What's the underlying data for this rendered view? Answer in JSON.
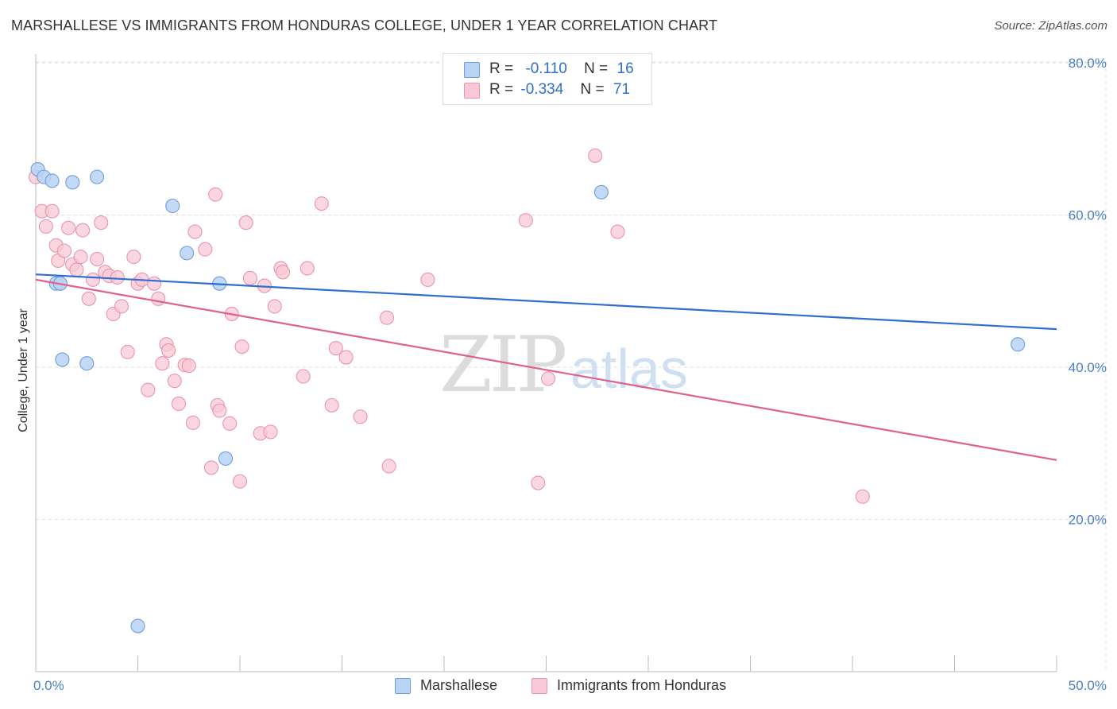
{
  "title": "MARSHALLESE VS IMMIGRANTS FROM HONDURAS COLLEGE, UNDER 1 YEAR CORRELATION CHART",
  "source": "Source: ZipAtlas.com",
  "watermark": {
    "zip": "ZIP",
    "atlas": "atlas"
  },
  "colors": {
    "blue_fill": "#b9d3f4",
    "blue_stroke": "#6f9ed9",
    "blue_line": "#2f6fd0",
    "pink_fill": "#f8c8d6",
    "pink_stroke": "#e994b0",
    "pink_line": "#e0608e",
    "grid": "#dddddd",
    "tick_text": "#4a7fc9"
  },
  "legend": {
    "rows": [
      {
        "r_label": "R =",
        "r_value": "-0.110",
        "n_label": "N =",
        "n_value": "16"
      },
      {
        "r_label": "R =",
        "r_value": "-0.334",
        "n_label": "N =",
        "n_value": "71"
      }
    ]
  },
  "bottom_legend": [
    "Marshallese",
    "Immigrants from Honduras"
  ],
  "chart_data": {
    "type": "scatter",
    "title": "MARSHALLESE VS IMMIGRANTS FROM HONDURAS COLLEGE, UNDER 1 YEAR CORRELATION CHART",
    "xlabel": "",
    "ylabel": "College, Under 1 year",
    "xlim": [
      0,
      50
    ],
    "ylim": [
      0,
      85
    ],
    "x_tick_labels": [
      "0.0%",
      "50.0%"
    ],
    "y_ticks": [
      20,
      40,
      60,
      80
    ],
    "y_tick_labels": [
      "20.0%",
      "40.0%",
      "60.0%",
      "80.0%"
    ],
    "grid": true,
    "legend_position": "top-center",
    "series": [
      {
        "name": "Marshallese",
        "points": [
          [
            0.1,
            66.0
          ],
          [
            0.4,
            65.0
          ],
          [
            0.8,
            64.5
          ],
          [
            1.0,
            51.0
          ],
          [
            1.2,
            51.0
          ],
          [
            1.3,
            41.0
          ],
          [
            1.8,
            64.3
          ],
          [
            2.5,
            40.5
          ],
          [
            3.0,
            65.0
          ],
          [
            5.0,
            6.0
          ],
          [
            6.7,
            61.2
          ],
          [
            7.4,
            55.0
          ],
          [
            9.0,
            51.0
          ],
          [
            9.3,
            28.0
          ],
          [
            27.7,
            63.0
          ],
          [
            48.1,
            43.0
          ]
        ],
        "trend": [
          [
            0,
            52.2
          ],
          [
            50,
            45.0
          ]
        ]
      },
      {
        "name": "Immigrants from Honduras",
        "points": [
          [
            0.0,
            65.0
          ],
          [
            0.3,
            60.5
          ],
          [
            0.5,
            58.5
          ],
          [
            0.8,
            60.5
          ],
          [
            1.0,
            56.0
          ],
          [
            1.1,
            54.0
          ],
          [
            1.4,
            55.3
          ],
          [
            1.6,
            58.3
          ],
          [
            1.8,
            53.5
          ],
          [
            2.0,
            52.8
          ],
          [
            2.2,
            54.5
          ],
          [
            2.3,
            58.0
          ],
          [
            2.6,
            49.0
          ],
          [
            2.8,
            51.5
          ],
          [
            3.0,
            54.2
          ],
          [
            3.2,
            59.0
          ],
          [
            3.4,
            52.5
          ],
          [
            3.6,
            52.0
          ],
          [
            3.8,
            47.0
          ],
          [
            4.0,
            51.8
          ],
          [
            4.2,
            48.0
          ],
          [
            4.5,
            42.0
          ],
          [
            4.8,
            54.5
          ],
          [
            5.0,
            51.0
          ],
          [
            5.2,
            51.5
          ],
          [
            5.5,
            37.0
          ],
          [
            5.8,
            51.0
          ],
          [
            6.0,
            49.0
          ],
          [
            6.2,
            40.5
          ],
          [
            6.4,
            43.0
          ],
          [
            6.5,
            42.2
          ],
          [
            6.8,
            38.2
          ],
          [
            7.0,
            35.2
          ],
          [
            7.3,
            40.3
          ],
          [
            7.5,
            40.2
          ],
          [
            7.7,
            32.7
          ],
          [
            7.8,
            57.8
          ],
          [
            8.3,
            55.5
          ],
          [
            8.6,
            26.8
          ],
          [
            8.8,
            62.7
          ],
          [
            8.9,
            35.0
          ],
          [
            9.0,
            34.3
          ],
          [
            9.5,
            32.6
          ],
          [
            9.6,
            47.0
          ],
          [
            10.0,
            25.0
          ],
          [
            10.1,
            42.7
          ],
          [
            10.3,
            59.0
          ],
          [
            10.5,
            51.7
          ],
          [
            11.0,
            31.3
          ],
          [
            11.2,
            50.7
          ],
          [
            11.5,
            31.5
          ],
          [
            11.7,
            48.0
          ],
          [
            12.0,
            53.0
          ],
          [
            12.1,
            52.5
          ],
          [
            13.1,
            38.8
          ],
          [
            13.3,
            53.0
          ],
          [
            14.0,
            61.5
          ],
          [
            14.5,
            35.0
          ],
          [
            14.7,
            42.5
          ],
          [
            15.2,
            41.3
          ],
          [
            15.9,
            33.5
          ],
          [
            17.2,
            46.5
          ],
          [
            17.3,
            27.0
          ],
          [
            19.2,
            51.5
          ],
          [
            24.0,
            59.3
          ],
          [
            24.6,
            24.8
          ],
          [
            25.1,
            38.5
          ],
          [
            27.4,
            67.8
          ],
          [
            28.5,
            57.8
          ],
          [
            40.5,
            23.0
          ],
          [
            1.2,
            51.0
          ]
        ],
        "trend": [
          [
            0,
            51.5
          ],
          [
            50,
            27.8
          ]
        ]
      }
    ]
  }
}
